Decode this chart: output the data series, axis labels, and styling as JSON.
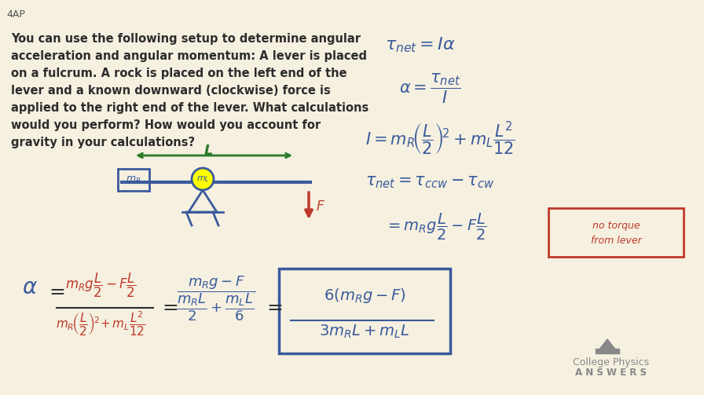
{
  "bg_color": "#f5f0e0",
  "title_text": "4AP",
  "problem_text": [
    "You can use the following setup to determine angular",
    "acceleration and angular momentum: A lever is placed",
    "on a fulcrum. A rock is placed on the left end of the",
    "lever and a known downward (clockwise) force is",
    "applied to the right end of the lever. What calculations",
    "would you perform? How would you account for",
    "gravity in your calculations?"
  ],
  "eq_color_blue": "#3a5a9c",
  "eq_color_red": "#c0392b",
  "eq_color_green": "#2a7a2a",
  "text_color_black": "#2c2c2c",
  "logo_color": "#8a8a8a",
  "figsize": [
    8.96,
    5.03
  ],
  "dpi": 100
}
